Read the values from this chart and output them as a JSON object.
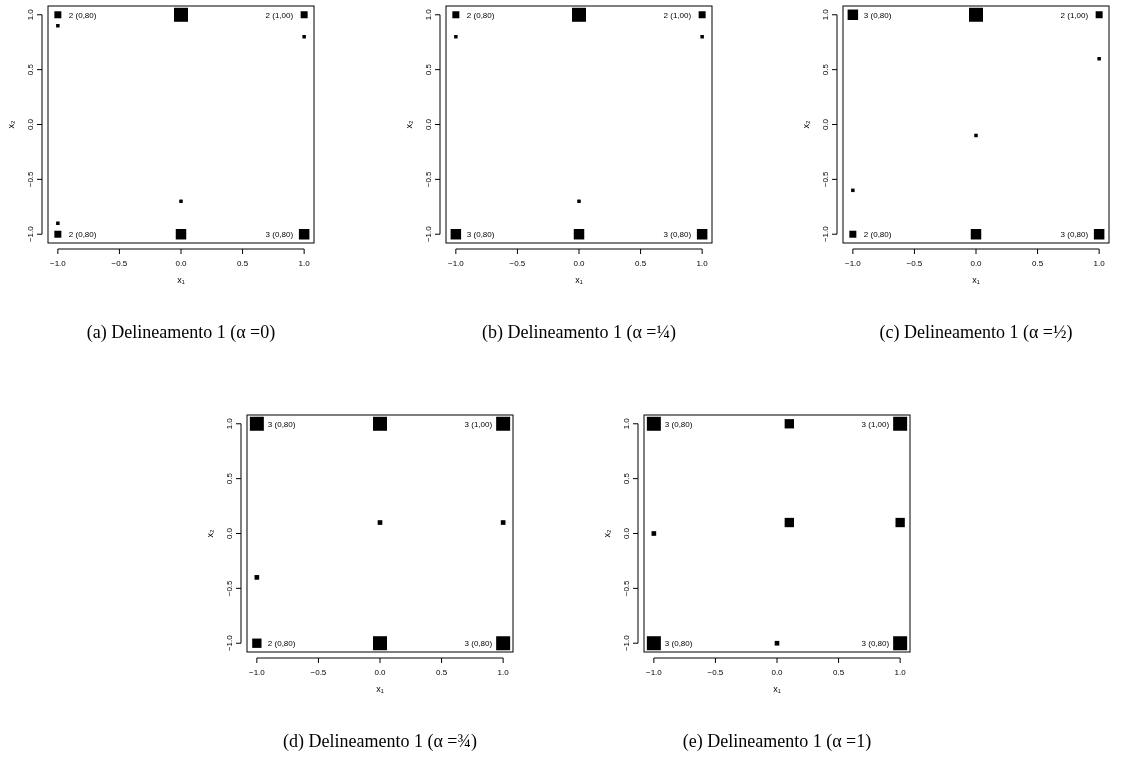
{
  "chart_data": [
    {
      "type": "bubble",
      "title": "(a) Delineamento 1 (α =0)",
      "xlabel": "x₁",
      "ylabel": "x₂",
      "marker": "square",
      "grid": false,
      "xlim": [
        -1.08,
        1.08
      ],
      "ylim": [
        -1.08,
        1.08
      ],
      "xticks": [
        {
          "value": -1,
          "label": "−1.0"
        },
        {
          "value": -0.5,
          "label": "−0.5"
        },
        {
          "value": 0,
          "label": "0.0"
        },
        {
          "value": 0.5,
          "label": "0.5"
        },
        {
          "value": 1,
          "label": "1.0"
        }
      ],
      "yticks": [
        {
          "value": -1,
          "label": "−1.0"
        },
        {
          "value": -0.5,
          "label": "−0.5"
        },
        {
          "value": 0,
          "label": "0.0"
        },
        {
          "value": 0.5,
          "label": "0.5"
        },
        {
          "value": 1,
          "label": "1.0"
        }
      ],
      "series": [
        {
          "color": "#000000",
          "x": [
            -1,
            -1,
            0,
            1,
            1,
            0,
            -1,
            -1,
            0,
            1
          ],
          "values": [
            1,
            0.9,
            1,
            1,
            0.8,
            -0.7,
            -0.9,
            -1,
            -1,
            -1
          ],
          "sizes": [
            0.25,
            0.0625,
            1,
            0.25,
            0.0625,
            0.0625,
            0.0625,
            0.25,
            0.5625,
            0.5625
          ],
          "value_labels": [
            "2 (0,80)",
            null,
            null,
            "2 (1,00)",
            null,
            null,
            null,
            "2 (0,80)",
            null,
            "3 (0,80)"
          ]
        }
      ]
    },
    {
      "type": "bubble",
      "title": "(b) Delineamento 1 (α =¼)",
      "xlabel": "x₁",
      "ylabel": "x₂",
      "marker": "square",
      "grid": false,
      "xlim": [
        -1.08,
        1.08
      ],
      "ylim": [
        -1.08,
        1.08
      ],
      "xticks": [
        {
          "value": -1,
          "label": "−1.0"
        },
        {
          "value": -0.5,
          "label": "−0.5"
        },
        {
          "value": 0,
          "label": "0.0"
        },
        {
          "value": 0.5,
          "label": "0.5"
        },
        {
          "value": 1,
          "label": "1.0"
        }
      ],
      "yticks": [
        {
          "value": -1,
          "label": "−1.0"
        },
        {
          "value": -0.5,
          "label": "−0.5"
        },
        {
          "value": 0,
          "label": "0.0"
        },
        {
          "value": 0.5,
          "label": "0.5"
        },
        {
          "value": 1,
          "label": "1.0"
        }
      ],
      "series": [
        {
          "color": "#000000",
          "x": [
            -1,
            -1,
            0,
            1,
            1,
            0,
            -1,
            0,
            1
          ],
          "values": [
            1,
            0.8,
            1,
            1,
            0.8,
            -0.7,
            -1,
            -1,
            -1
          ],
          "sizes": [
            0.25,
            0.0625,
            1,
            0.25,
            0.0625,
            0.0625,
            0.5625,
            0.5625,
            0.5625
          ],
          "value_labels": [
            "2 (0,80)",
            null,
            null,
            "2 (1,00)",
            null,
            null,
            "3 (0,80)",
            null,
            "3 (0,80)"
          ]
        }
      ]
    },
    {
      "type": "bubble",
      "title": "(c) Delineamento 1 (α =½)",
      "xlabel": "x₁",
      "ylabel": "x₂",
      "marker": "square",
      "grid": false,
      "xlim": [
        -1.08,
        1.08
      ],
      "ylim": [
        -1.08,
        1.08
      ],
      "xticks": [
        {
          "value": -1,
          "label": "−1.0"
        },
        {
          "value": -0.5,
          "label": "−0.5"
        },
        {
          "value": 0,
          "label": "0.0"
        },
        {
          "value": 0.5,
          "label": "0.5"
        },
        {
          "value": 1,
          "label": "1.0"
        }
      ],
      "yticks": [
        {
          "value": -1,
          "label": "−1.0"
        },
        {
          "value": -0.5,
          "label": "−0.5"
        },
        {
          "value": 0,
          "label": "0.0"
        },
        {
          "value": 0.5,
          "label": "0.5"
        },
        {
          "value": 1,
          "label": "1.0"
        }
      ],
      "series": [
        {
          "color": "#000000",
          "x": [
            -1,
            0,
            1,
            1,
            0,
            -1,
            -1,
            0,
            1
          ],
          "values": [
            1,
            1,
            1,
            0.6,
            -0.1,
            -0.6,
            -1,
            -1,
            -1
          ],
          "sizes": [
            0.5625,
            1,
            0.25,
            0.0625,
            0.0625,
            0.0625,
            0.25,
            0.5625,
            0.5625
          ],
          "value_labels": [
            "3 (0,80)",
            null,
            "2 (1,00)",
            null,
            null,
            null,
            "2 (0,80)",
            null,
            "3 (0,80)"
          ]
        }
      ]
    },
    {
      "type": "bubble",
      "title": "(d) Delineamento 1 (α =¾)",
      "xlabel": "x₁",
      "ylabel": "x₂",
      "marker": "square",
      "grid": false,
      "xlim": [
        -1.08,
        1.08
      ],
      "ylim": [
        -1.08,
        1.08
      ],
      "xticks": [
        {
          "value": -1,
          "label": "−1.0"
        },
        {
          "value": -0.5,
          "label": "−0.5"
        },
        {
          "value": 0,
          "label": "0.0"
        },
        {
          "value": 0.5,
          "label": "0.5"
        },
        {
          "value": 1,
          "label": "1.0"
        }
      ],
      "yticks": [
        {
          "value": -1,
          "label": "−1.0"
        },
        {
          "value": -0.5,
          "label": "−0.5"
        },
        {
          "value": 0,
          "label": "0.0"
        },
        {
          "value": 0.5,
          "label": "0.5"
        },
        {
          "value": 1,
          "label": "1.0"
        }
      ],
      "series": [
        {
          "color": "#000000",
          "x": [
            -1,
            0,
            1,
            0,
            1,
            -1,
            -1,
            0,
            1
          ],
          "values": [
            1,
            1,
            1,
            0.1,
            0.1,
            -0.4,
            -1,
            -1,
            -1
          ],
          "sizes": [
            1,
            1,
            1,
            0.111,
            0.111,
            0.111,
            0.444,
            1,
            1
          ],
          "value_labels": [
            "3 (0,80)",
            null,
            "3 (1,00)",
            null,
            null,
            null,
            "2 (0,80)",
            null,
            "3 (0,80)"
          ]
        }
      ]
    },
    {
      "type": "bubble",
      "title": "(e) Delineamento 1 (α =1)",
      "xlabel": "x₁",
      "ylabel": "x₂",
      "marker": "square",
      "grid": false,
      "xlim": [
        -1.08,
        1.08
      ],
      "ylim": [
        -1.08,
        1.08
      ],
      "xticks": [
        {
          "value": -1,
          "label": "−1.0"
        },
        {
          "value": -0.5,
          "label": "−0.5"
        },
        {
          "value": 0,
          "label": "0.0"
        },
        {
          "value": 0.5,
          "label": "0.5"
        },
        {
          "value": 1,
          "label": "1.0"
        }
      ],
      "yticks": [
        {
          "value": -1,
          "label": "−1.0"
        },
        {
          "value": -0.5,
          "label": "−0.5"
        },
        {
          "value": 0,
          "label": "0.0"
        },
        {
          "value": 0.5,
          "label": "0.5"
        },
        {
          "value": 1,
          "label": "1.0"
        }
      ],
      "series": [
        {
          "color": "#000000",
          "x": [
            -1,
            0.1,
            1,
            -1,
            0.1,
            1,
            -1,
            0,
            1
          ],
          "values": [
            1,
            1,
            1,
            0,
            0.1,
            0.1,
            -1,
            -1,
            -1
          ],
          "sizes": [
            1,
            0.444,
            1,
            0.111,
            0.444,
            0.444,
            1,
            0.111,
            1
          ],
          "value_labels": [
            "3 (0,80)",
            null,
            "3 (1,00)",
            null,
            null,
            null,
            "3 (0,80)",
            null,
            "3 (0,80)"
          ]
        }
      ]
    }
  ]
}
